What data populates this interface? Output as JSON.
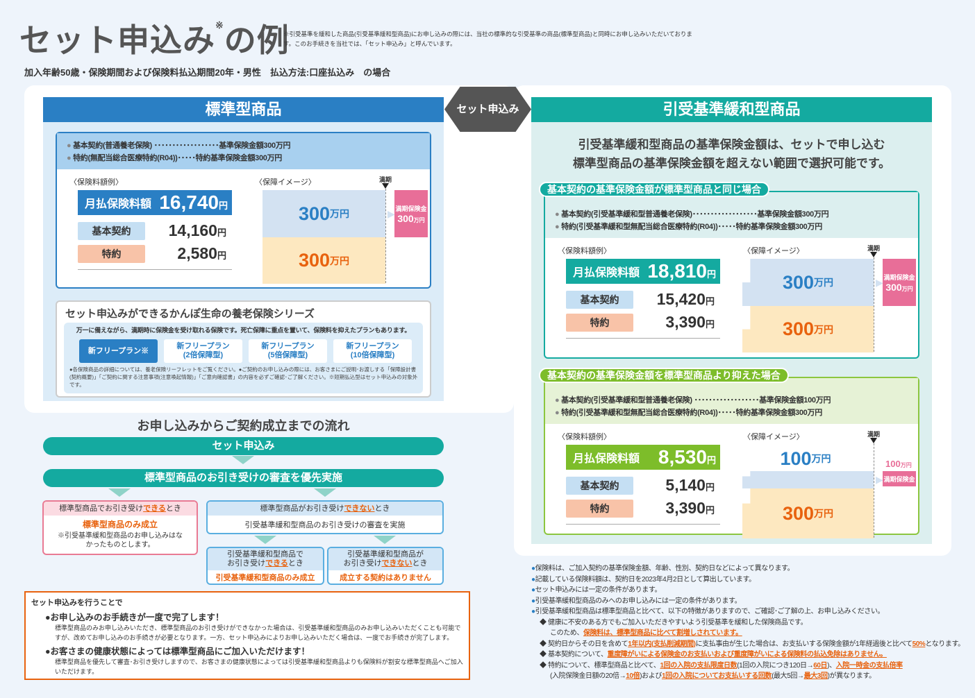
{
  "title": {
    "main": "セット申込み",
    "mark": "※",
    "tail": "の例"
  },
  "footnote": "※引受基準を緩和した商品(引受基準緩和型商品)にお申し込みの際には、当社の標準的な引受基準の商品(標準型商品)と同時にお申し込みいただいております。このお手続きを当社では、「セット申込み」と呼んでいます。",
  "subtitle": "加入年齢50歳・保険期間および保険料払込期間20年・男性　払込方法:口座払込み　の場合",
  "colors": {
    "standard": "#2a7fc4",
    "relaxed": "#14aaa0",
    "suppressed": "#7dbd2a",
    "orange": "#e8620e",
    "pink": "#e86e98"
  },
  "set_arrow": "セット申込み",
  "standard": {
    "header": "標準型商品"
  },
  "relaxed": {
    "header": "引受基準緩和型商品",
    "headline1": "引受基準緩和型商品の基準保険金額は、セットで申し込む",
    "headline2": "標準型商品の基準保険金額を超えない範囲で選択可能です。"
  },
  "plans": [
    {
      "tab": "",
      "line1": "基本契約(普通養老保険) ･･････････････････基準保険金額300万円",
      "line2": "特約(無配当総合医療特約(R04))･････特約基準保険金額300万円",
      "premium_label": "〈保険料額例〉",
      "image_label": "〈保障イメージ〉",
      "maturity": "満期",
      "monthly_label": "月払保険料額",
      "monthly": "16,740",
      "yen": "円",
      "base_label": "基本契約",
      "base": "14,160",
      "rider_label": "特約",
      "rider": "2,580",
      "cover_base": "300",
      "cover_rider": "300",
      "unit": "万円",
      "maturity_benefit_label": "満期保険金",
      "maturity_benefit": "300"
    },
    {
      "tab": "基本契約の基準保険金額が標準型商品と同じ場合",
      "line1": "基本契約(引受基準緩和型普通養老保険)･･････････････････基準保険金額300万円",
      "line2": "特約(引受基準緩和型無配当総合医療特約(R04))･････特約基準保険金額300万円",
      "premium_label": "〈保険料額例〉",
      "image_label": "〈保障イメージ〉",
      "maturity": "満期",
      "monthly_label": "月払保険料額",
      "monthly": "18,810",
      "yen": "円",
      "base_label": "基本契約",
      "base": "15,420",
      "rider_label": "特約",
      "rider": "3,390",
      "cover_base": "300",
      "cover_rider": "300",
      "unit": "万円",
      "maturity_benefit_label": "満期保険金",
      "maturity_benefit": "300"
    },
    {
      "tab": "基本契約の基準保険金額を標準型商品より抑えた場合",
      "line1": "基本契約(引受基準緩和型普通養老保険) ･･････････････････基準保険金額100万円",
      "line2": "特約(引受基準緩和型無配当総合医療特約(R04))･････特約基準保険金額300万円",
      "premium_label": "〈保険料額例〉",
      "image_label": "〈保障イメージ〉",
      "maturity": "満期",
      "monthly_label": "月払保険料額",
      "monthly": "8,530",
      "yen": "円",
      "base_label": "基本契約",
      "base": "5,140",
      "rider_label": "特約",
      "rider": "3,390",
      "cover_base": "100",
      "cover_rider": "300",
      "unit": "万円",
      "maturity_benefit_label": "満期保険金",
      "maturity_benefit": "100"
    }
  ],
  "series": {
    "title": "セット申込みができるかんぽ生命の養老保険シリーズ",
    "desc": "万一に備えながら、満期時に保険金を受け取れる保険です。死亡保障に重点を置いて、保険料を抑えたプランもあります。",
    "plans": [
      {
        "l1": "新フリープラン※",
        "l2": ""
      },
      {
        "l1": "新フリープラン",
        "l2": "(2倍保障型)"
      },
      {
        "l1": "新フリープラン",
        "l2": "(5倍保障型)"
      },
      {
        "l1": "新フリープラン",
        "l2": "(10倍保障型)"
      }
    ],
    "note": "●各保険商品の詳細については、養老保険リーフレットをご覧ください。●ご契約のお申し込みの際には、お客さまにご説明･お渡しする「保障設計書(契約概要)」「ご契約に関する注意事項(注意喚起情報)」「ご意向確認書」の内容を必ずご確認･ご了解ください。※短期払込型はセット申込みの対象外です。"
  },
  "flow": {
    "title": "お申し込みからご契約成立までの流れ",
    "step1": "セット申込み",
    "step2": "標準型商品のお引き受けの審査を優先実施",
    "ok": {
      "pre": "標準型商品でお引き受け",
      "em": "できる",
      "post": "とき",
      "result": "標準型商品のみ成立",
      "note": "※引受基準緩和型商品のお申し込みはなかったものとします。"
    },
    "ng": {
      "pre": "標準型商品がお引き受け",
      "em": "できない",
      "post": "とき",
      "action": "引受基準緩和型商品のお引き受けの審査を実施"
    },
    "ng_ok": {
      "l1": "引受基準緩和型商品で",
      "pre": "お引き受け",
      "em": "できる",
      "post": "とき",
      "result": "引受基準緩和型商品のみ成立"
    },
    "ng_ng": {
      "l1": "引受基準緩和型商品が",
      "pre": "お引き受け",
      "em": "できない",
      "post": "とき",
      "result": "成立する契約はありません"
    }
  },
  "benefits": {
    "title": "セット申込みを行うことで",
    "items": [
      {
        "head": "●お申し込みのお手続きが一度で完了します！",
        "body": "標準型商品のみお申し込みいただき、標準型商品のお引き受けができなかった場合は、引受基準緩和型商品のみお申し込みいただくことも可能ですが、改めてお申し込みのお手続きが必要となります。一方、セット申込みによりお申し込みいただく場合は、一度でお手続きが完了します。"
      },
      {
        "head": "●お客さまの健康状態によっては標準型商品にご加入いただけます！",
        "body": "標準型商品を優先して審査･お引き受けしますので、お客さまの健康状態によっては引受基準緩和型商品よりも保険料が割安な標準型商品へご加入いただけます。"
      }
    ]
  },
  "notes": {
    "n1": "保険料は、ご加入契約の基準保険金額、年齢、性別、契約日などによって異なります。",
    "n2": "記載している保険料額は、契約日を2023年4月2日として算出しています。",
    "n3": "セット申込みには一定の条件があります。",
    "n4": "引受基準緩和型商品のみへのお申し込みには一定の条件があります。",
    "n5": "引受基準緩和型商品は標準型商品と比べて、以下の特徴がありますので、ご確認･ご了解の上、お申し込みください。",
    "d1a": "健康に不安のある方でもご加入いただきやすいよう引受基準を緩和した保険商品です。",
    "d1b": "このため、",
    "d1c": "保険料は、標準型商品に比べて割増しされています。",
    "d2a": "契約日からその日を含めて",
    "d2b": "1年以内(支払削減期間)",
    "d2c": "に支払事由が生じた場合は、お支払いする保険金額が1年経過後と比べて",
    "d2d": "50%",
    "d2e": "となります。",
    "d3a": "基本契約について、",
    "d3b": "重度障がいによる保険金のお支払いおよび重度障がいによる保険料の払込免除はありません。",
    "d4a": "特約について、標準型商品と比べて、",
    "d4b": "1回の入院の支払限度日数",
    "d4c": "(1回の入院につき120日→",
    "d4d": "60日",
    "d4e": ")、",
    "d4f": "入院一時金の支払倍率",
    "d4g": "(入院保険金日額の20倍→",
    "d4h": "10倍",
    "d4i": ")および",
    "d4j": "1回の入院についてお支払いする回数",
    "d4k": "(最大5回→",
    "d4l": "最大3回",
    "d4m": ")が異なります。"
  }
}
